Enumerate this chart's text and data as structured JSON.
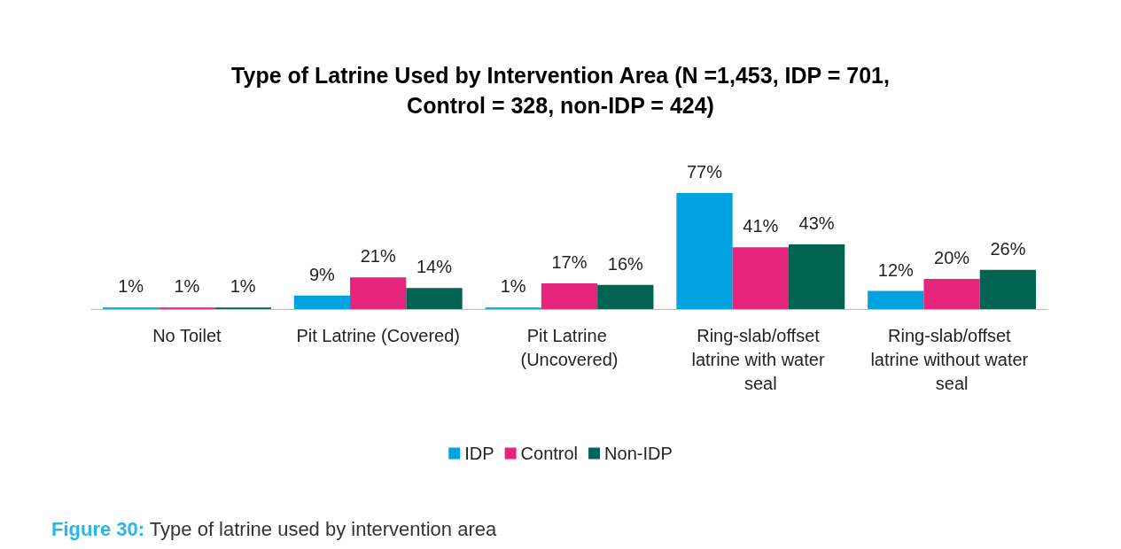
{
  "chart_data": {
    "type": "bar",
    "title": "Type of Latrine Used by Intervention Area (N =1,453, IDP = 701,\nControl = 328, non-IDP = 424)",
    "categories": [
      "No Toilet",
      "Pit Latrine (Covered)",
      "Pit Latrine (Uncovered)",
      "Ring-slab/offset latrine with water seal",
      "Ring-slab/offset latrine without water seal"
    ],
    "series": [
      {
        "name": "IDP",
        "color": "#00a3e0",
        "values": [
          1,
          9,
          1,
          77,
          12
        ],
        "value_labels": [
          "1%",
          "9%",
          "1%",
          "77%",
          "12%"
        ]
      },
      {
        "name": "Control",
        "color": "#e5247d",
        "values": [
          1,
          21,
          17,
          41,
          20
        ],
        "value_labels": [
          "1%",
          "21%",
          "17%",
          "41%",
          "20%"
        ]
      },
      {
        "name": "Non-IDP",
        "color": "#006450",
        "values": [
          1,
          14,
          16,
          43,
          26
        ],
        "value_labels": [
          "1%",
          "14%",
          "16%",
          "43%",
          "26%"
        ]
      }
    ],
    "legend": "bottom",
    "annotations": [
      "Figure 30: Type of latrine used by intervention area"
    ]
  }
}
